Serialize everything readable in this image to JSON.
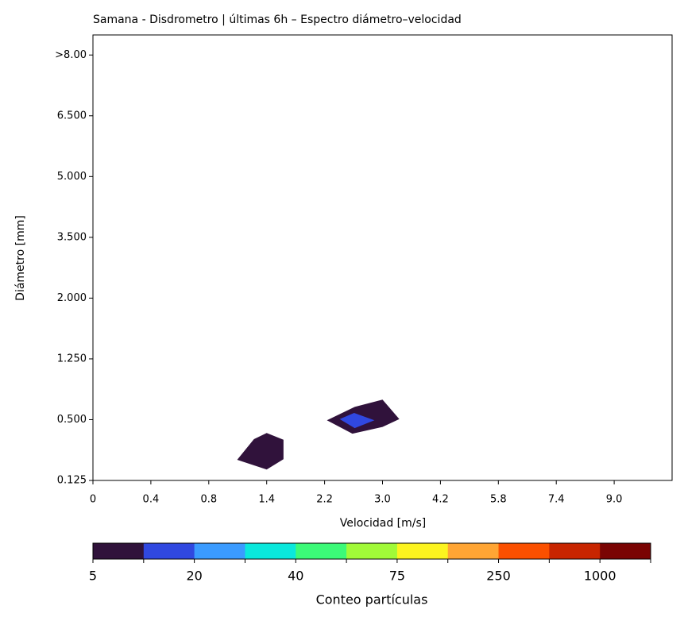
{
  "chart_data": {
    "type": "contour",
    "title": "Samana - Disdrometro | últimas 6h – Espectro diámetro–velocidad",
    "x_label": "Velocidad [m/s]",
    "y_label": "Diámetro [mm]",
    "xlim": [
      0,
      10
    ],
    "xticks": [
      0,
      {
        "value": 1,
        "label": "0.4"
      },
      {
        "value": 2,
        "label": "0.8"
      },
      {
        "value": 3,
        "label": "1.4"
      },
      {
        "value": 4,
        "label": "2.2"
      },
      {
        "value": 5,
        "label": "3.0"
      },
      {
        "value": 6,
        "label": "4.2"
      },
      {
        "value": 7,
        "label": "5.8"
      },
      {
        "value": 8,
        "label": "7.4"
      },
      {
        "value": 9,
        "label": "9.0"
      }
    ],
    "ylim": [
      0,
      7.33
    ],
    "yticks": [
      {
        "value": 0,
        "label": "0.125"
      },
      {
        "value": 1,
        "label": "0.500"
      },
      {
        "value": 2,
        "label": "1.250"
      },
      {
        "value": 3,
        "label": "2.000"
      },
      {
        "value": 4,
        "label": "3.500"
      },
      {
        "value": 5,
        "label": "5.000"
      },
      {
        "value": 6,
        "label": "6.500"
      },
      {
        "value": 7,
        "label": ">8.00"
      }
    ],
    "regions": [
      {
        "level": 0,
        "x": [
          2.49,
          2.78,
          3.0,
          3.29,
          3.29,
          3.0
        ],
        "y": [
          0.34,
          0.68,
          0.78,
          0.67,
          0.35,
          0.18
        ]
      },
      {
        "level": 0,
        "x": [
          4.04,
          4.52,
          5.0,
          5.29,
          5.0,
          4.48
        ],
        "y": [
          0.99,
          1.21,
          1.33,
          1.01,
          0.88,
          0.77
        ]
      },
      {
        "level": 1,
        "x": [
          4.26,
          4.51,
          4.86,
          4.52
        ],
        "y": [
          1.01,
          1.11,
          0.99,
          0.86
        ]
      }
    ],
    "colorbar": {
      "label": "Conteo partículas",
      "ticks": [
        5,
        null,
        20,
        null,
        40,
        null,
        75,
        null,
        250,
        null,
        1000,
        null
      ],
      "colors": [
        "#30123b",
        "#3048e0",
        "#3a9bff",
        "#0ae8dc",
        "#3cfa78",
        "#a1fa38",
        "#fcf41f",
        "#ffa534",
        "#fb5000",
        "#c82500",
        "#7a0403"
      ]
    }
  }
}
